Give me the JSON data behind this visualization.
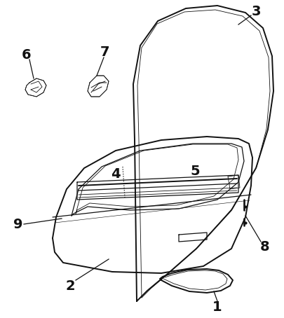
{
  "bg_color": "#ffffff",
  "lc": "#111111",
  "figsize": [
    4.06,
    4.54
  ],
  "dpi": 100,
  "label_fontsize": 14
}
